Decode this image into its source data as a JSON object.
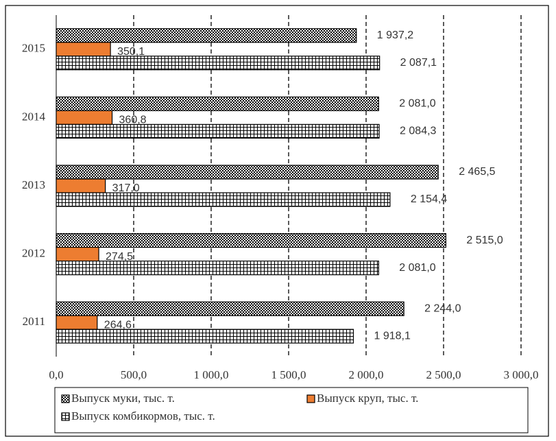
{
  "chart_data": {
    "type": "hbar",
    "categories": [
      "2011",
      "2012",
      "2013",
      "2014",
      "2015"
    ],
    "series": [
      {
        "name": "Выпуск муки, тыс. т.",
        "color": "#000000",
        "pattern": "checker",
        "values": [
          2244.0,
          2515.0,
          2465.5,
          2081.0,
          1937.2
        ],
        "value_labels": [
          "2 244,0",
          "2 515,0",
          "2 465,5",
          "2 081,0",
          "1 937,2"
        ]
      },
      {
        "name": "Выпуск круп, тыс. т.",
        "color": "#ed7d31",
        "values": [
          264.6,
          274.5,
          317.0,
          360.8,
          350.1
        ],
        "value_labels": [
          "264,6",
          "274,5",
          "317,0",
          "360,8",
          "350,1"
        ]
      },
      {
        "name": "Выпуск комбикормов, тыс. т.",
        "color": "#000000",
        "pattern": "grid",
        "values": [
          1918.1,
          2081.0,
          2154.4,
          2084.3,
          2087.1
        ],
        "value_labels": [
          "1 918,1",
          "2 081,0",
          "2 154,4",
          "2 084,3",
          "2 087,1"
        ]
      }
    ],
    "xlim": [
      0,
      3000
    ],
    "xticks": [
      {
        "value": 0,
        "label": "0,0"
      },
      {
        "value": 500,
        "label": "500,0"
      },
      {
        "value": 1000,
        "label": "1 000,0"
      },
      {
        "value": 1500,
        "label": "1 500,0"
      },
      {
        "value": 2000,
        "label": "2 000,0"
      },
      {
        "value": 2500,
        "label": "2 500,0"
      },
      {
        "value": 3000,
        "label": "3 000,0"
      }
    ],
    "grid": true
  }
}
